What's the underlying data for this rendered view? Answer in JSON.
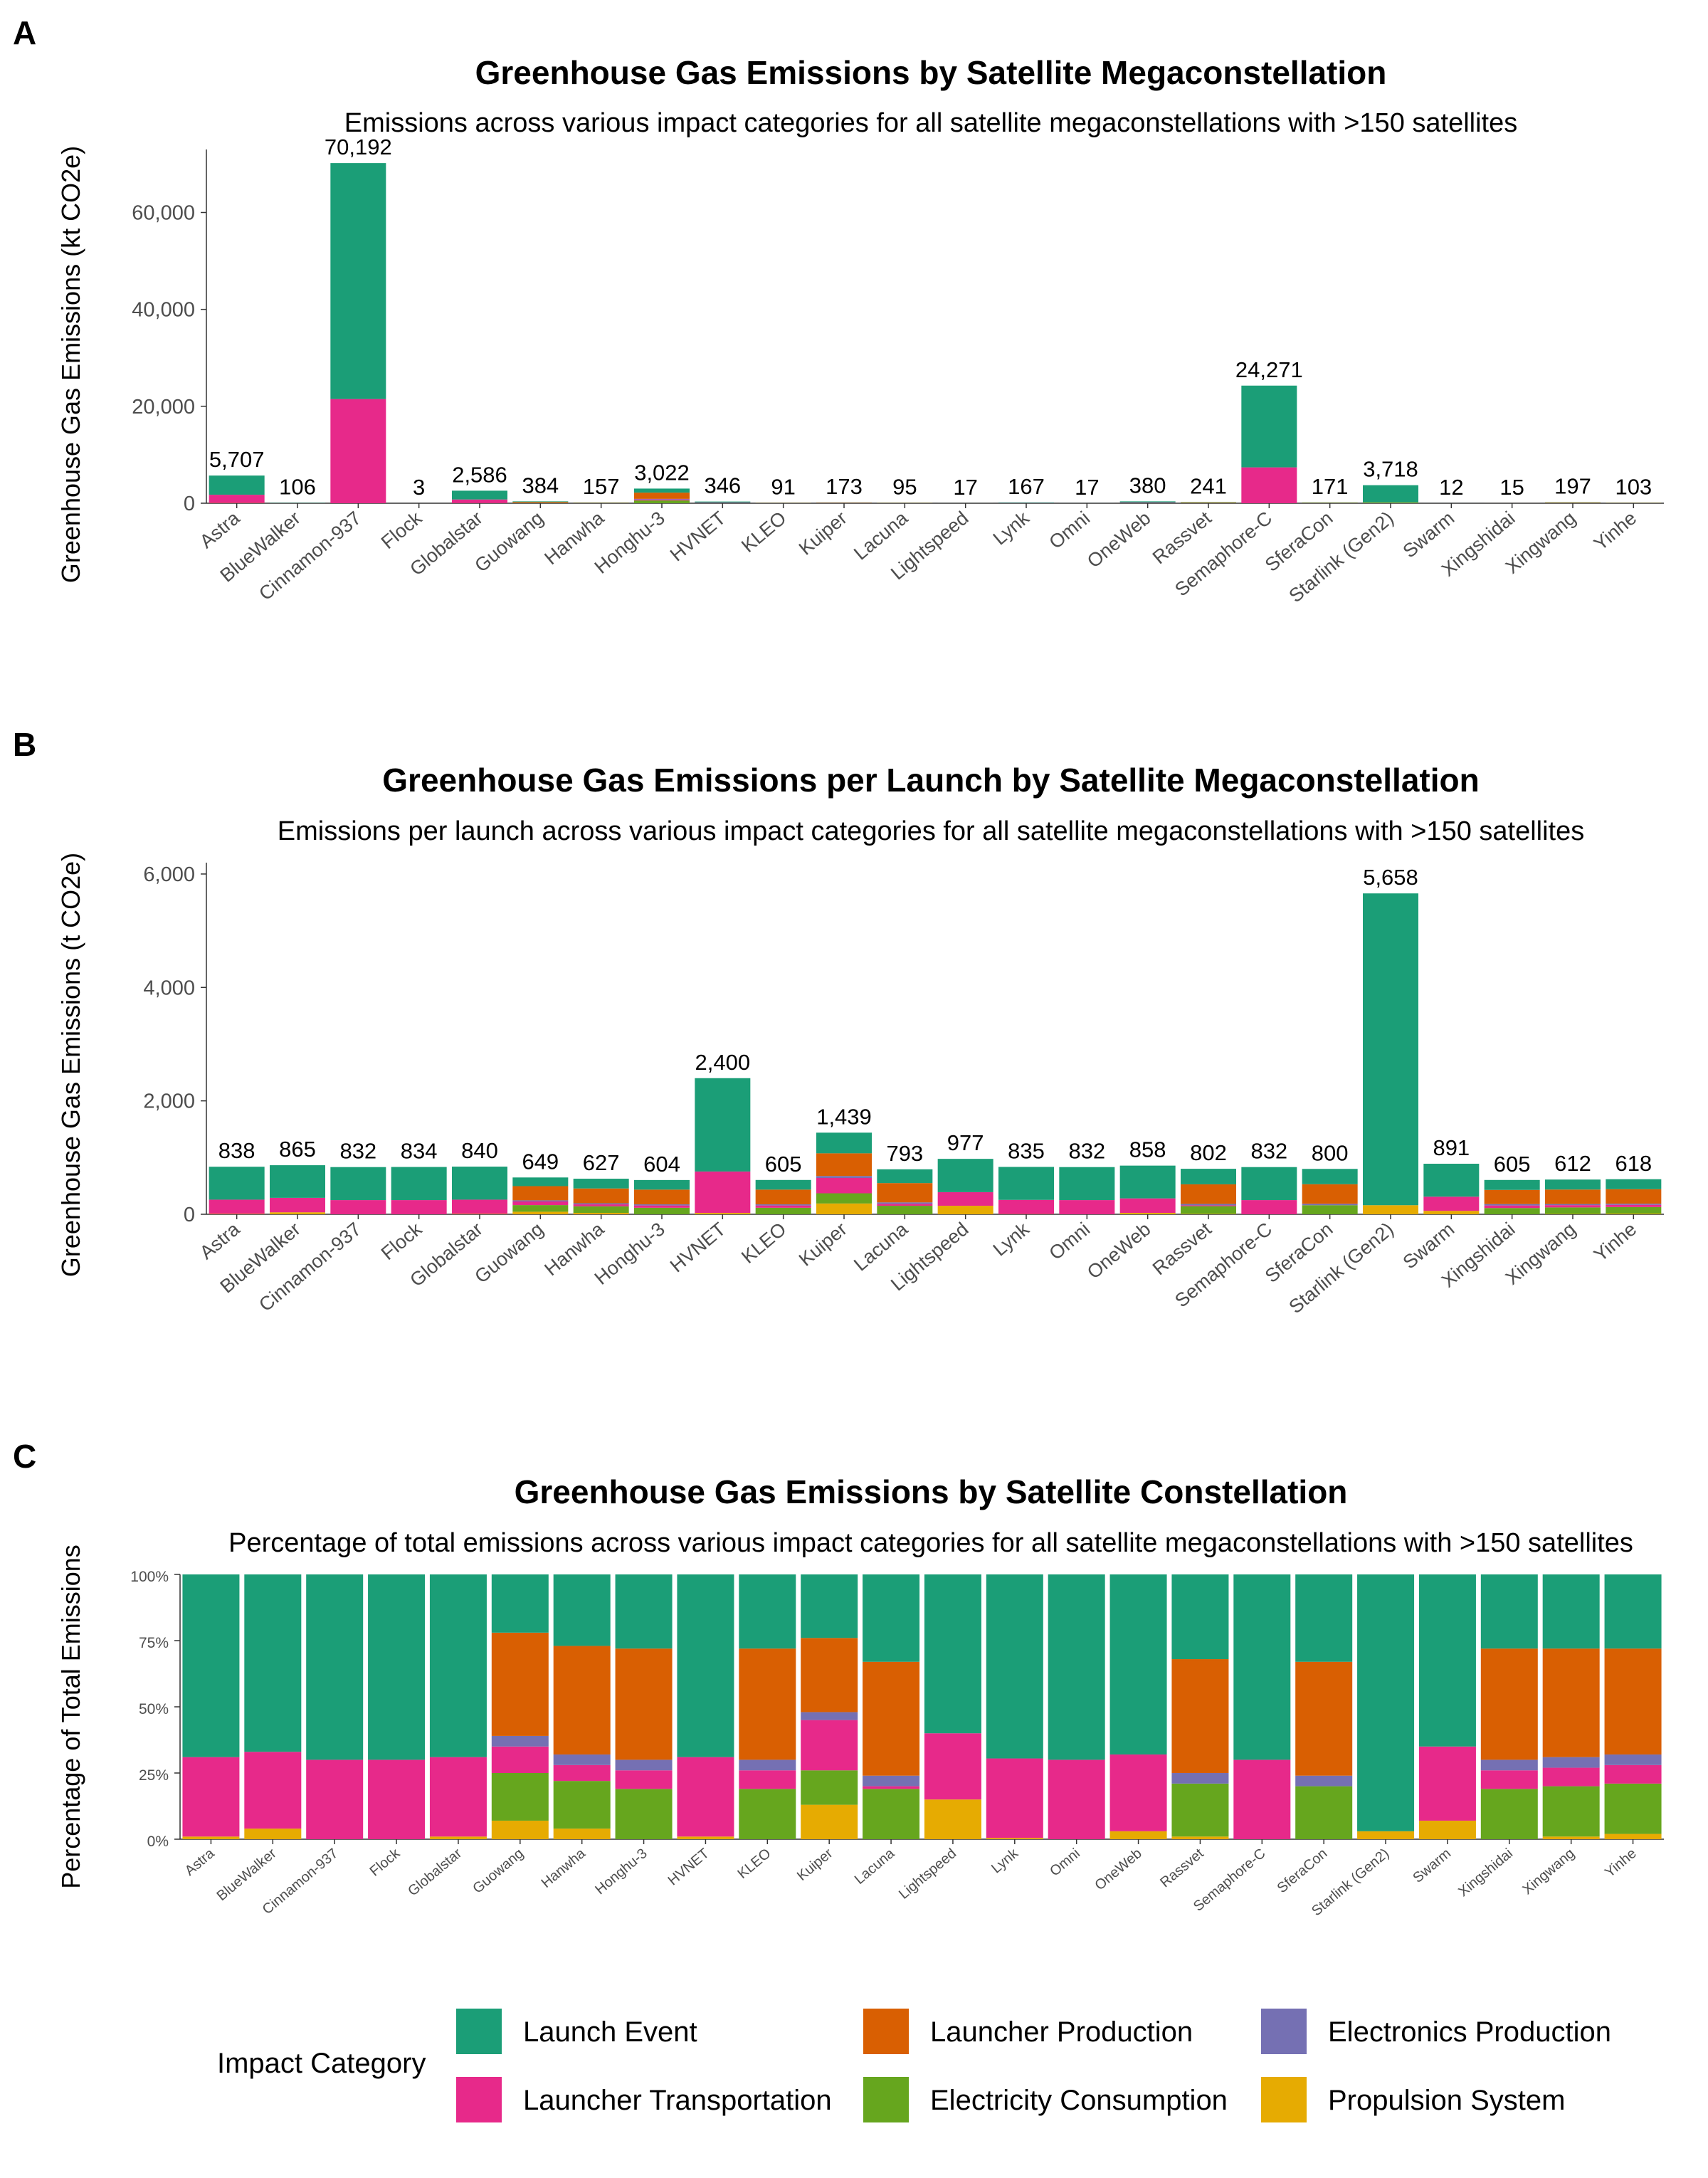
{
  "panels": [
    {
      "letter": "A",
      "title": "Greenhouse Gas Emissions by Satellite Megaconstellation",
      "subtitle": "Emissions across various impact categories for all satellite megaconstellations with >150 satellites"
    },
    {
      "letter": "B",
      "title": "Greenhouse Gas Emissions per Launch by Satellite Megaconstellation",
      "subtitle": "Emissions per launch across various impact categories for all satellite megaconstellations with >150 satellites"
    },
    {
      "letter": "C",
      "title": "Greenhouse Gas Emissions by Satellite Constellation",
      "subtitle": "Percentage of total emissions across various impact categories for all satellite megaconstellations with >150 satellites"
    }
  ],
  "legend": {
    "title": "Impact Category",
    "items": [
      {
        "name": "Launch Event",
        "color": "#1b9e77"
      },
      {
        "name": "Launcher Production",
        "color": "#d95f02"
      },
      {
        "name": "Electronics Production",
        "color": "#7570b3"
      },
      {
        "name": "Launcher Transportation",
        "color": "#e7298a"
      },
      {
        "name": "Electricity Consumption",
        "color": "#66a61e"
      },
      {
        "name": "Propulsion System",
        "color": "#e6ab02"
      }
    ]
  },
  "chart_data": [
    {
      "type": "bar",
      "stacked": true,
      "title": "Greenhouse Gas Emissions by Satellite Megaconstellation",
      "subtitle": "Emissions across various impact categories for all satellite megaconstellations with >150 satellites",
      "xlabel": "",
      "ylabel": "Greenhouse Gas Emissions (kt CO2e)",
      "ylim": [
        0,
        73000
      ],
      "yticks": [
        0,
        20000,
        40000,
        60000
      ],
      "ytick_labels": [
        "0",
        "20,000",
        "40,000",
        "60,000"
      ],
      "categories": [
        "Astra",
        "BlueWalker",
        "Cinnamon-937",
        "Flock",
        "Globalstar",
        "Guowang",
        "Hanwha",
        "Honghu-3",
        "HVNET",
        "KLEO",
        "Kuiper",
        "Lacuna",
        "Lightspeed",
        "Lynk",
        "Omni",
        "OneWeb",
        "Rassvet",
        "Semaphore-C",
        "SferaCon",
        "Starlink (Gen2)",
        "Swarm",
        "Xingshidai",
        "Xingwang",
        "Yinhe"
      ],
      "totals": [
        5707,
        106,
        70192,
        3,
        2586,
        384,
        157,
        3022,
        346,
        91,
        173,
        95,
        17,
        167,
        17,
        380,
        241,
        24271,
        171,
        3718,
        12,
        15,
        197,
        103
      ],
      "total_labels": [
        "5,707",
        "106",
        "70,192",
        "3",
        "2,586",
        "384",
        "157",
        "3,022",
        "346",
        "91",
        "173",
        "95",
        "17",
        "167",
        "17",
        "380",
        "241",
        "24,271",
        "171",
        "3,718",
        "12",
        "15",
        "197",
        "103"
      ],
      "series": [
        {
          "name": "Propulsion System",
          "values": [
            50,
            4,
            0,
            0,
            25,
            27,
            6,
            0,
            5,
            0,
            23,
            0,
            3,
            1,
            0,
            11,
            2,
            0,
            0,
            110,
            1,
            0,
            0,
            2
          ]
        },
        {
          "name": "Electricity Consumption",
          "values": [
            0,
            0,
            0,
            0,
            0,
            69,
            28,
            572,
            0,
            18,
            21,
            18,
            0,
            0,
            0,
            0,
            48,
            0,
            33,
            0,
            0,
            3,
            37,
            19
          ]
        },
        {
          "name": "Launcher Transportation",
          "values": [
            1700,
            31,
            21500,
            1,
            750,
            27,
            9,
            207,
            101,
            6,
            33,
            4,
            4,
            50,
            5,
            110,
            10,
            7400,
            0,
            0,
            3,
            1,
            14,
            6
          ]
        },
        {
          "name": "Electronics Production",
          "values": [
            0,
            0,
            0,
            0,
            0,
            12,
            7,
            121,
            0,
            3,
            3,
            4,
            0,
            0,
            0,
            0,
            9,
            0,
            7,
            0,
            0,
            1,
            6,
            3
          ]
        },
        {
          "name": "Launcher Production",
          "values": [
            0,
            0,
            0,
            0,
            0,
            150,
            64,
            1287,
            0,
            39,
            49,
            41,
            0,
            0,
            0,
            0,
            103,
            0,
            72,
            0,
            0,
            6,
            82,
            42
          ]
        },
        {
          "name": "Launch Event",
          "values": [
            3957,
            71,
            48692,
            2,
            1811,
            99,
            43,
            835,
            240,
            25,
            44,
            28,
            10,
            116,
            12,
            259,
            69,
            16871,
            59,
            3608,
            8,
            4,
            58,
            31
          ]
        }
      ]
    },
    {
      "type": "bar",
      "stacked": true,
      "title": "Greenhouse Gas Emissions per Launch by Satellite Megaconstellation",
      "subtitle": "Emissions per launch across various impact categories for all satellite megaconstellations with >150 satellites",
      "xlabel": "",
      "ylabel": "Greenhouse Gas Emissions (t CO2e)",
      "ylim": [
        0,
        6200
      ],
      "yticks": [
        0,
        2000,
        4000,
        6000
      ],
      "ytick_labels": [
        "0",
        "2,000",
        "4,000",
        "6,000"
      ],
      "categories": [
        "Astra",
        "BlueWalker",
        "Cinnamon-937",
        "Flock",
        "Globalstar",
        "Guowang",
        "Hanwha",
        "Honghu-3",
        "HVNET",
        "KLEO",
        "Kuiper",
        "Lacuna",
        "Lightspeed",
        "Lynk",
        "Omni",
        "OneWeb",
        "Rassvet",
        "Semaphore-C",
        "SferaCon",
        "Starlink (Gen2)",
        "Swarm",
        "Xingshidai",
        "Xingwang",
        "Yinhe"
      ],
      "totals": [
        838,
        865,
        832,
        834,
        840,
        649,
        627,
        604,
        2400,
        605,
        1439,
        793,
        977,
        835,
        832,
        858,
        802,
        832,
        800,
        5658,
        891,
        605,
        612,
        618
      ],
      "total_labels": [
        "838",
        "865",
        "832",
        "834",
        "840",
        "649",
        "627",
        "604",
        "2,400",
        "605",
        "1,439",
        "793",
        "977",
        "835",
        "832",
        "858",
        "802",
        "832",
        "800",
        "5,658",
        "891",
        "605",
        "612",
        "618"
      ],
      "series": [
        {
          "name": "Propulsion System",
          "values": [
            8,
            35,
            0,
            0,
            8,
            45,
            25,
            0,
            24,
            0,
            190,
            0,
            150,
            4,
            0,
            25,
            8,
            0,
            0,
            160,
            60,
            0,
            6,
            12
          ]
        },
        {
          "name": "Electricity Consumption",
          "values": [
            0,
            0,
            0,
            0,
            0,
            117,
            115,
            115,
            0,
            115,
            180,
            150,
            0,
            0,
            0,
            0,
            135,
            0,
            160,
            0,
            0,
            110,
            115,
            115
          ]
        },
        {
          "name": "Launcher Transportation",
          "values": [
            250,
            255,
            250,
            250,
            250,
            64,
            35,
            40,
            730,
            40,
            270,
            35,
            240,
            250,
            250,
            255,
            15,
            250,
            0,
            0,
            250,
            45,
            40,
            40
          ]
        },
        {
          "name": "Electronics Production",
          "values": [
            0,
            0,
            0,
            0,
            0,
            20,
            20,
            20,
            0,
            20,
            35,
            25,
            0,
            0,
            0,
            0,
            25,
            0,
            25,
            0,
            0,
            25,
            20,
            20
          ]
        },
        {
          "name": "Launcher Production",
          "values": [
            0,
            0,
            0,
            0,
            0,
            250,
            260,
            260,
            0,
            260,
            400,
            340,
            0,
            0,
            0,
            0,
            345,
            0,
            345,
            0,
            0,
            250,
            255,
            255
          ]
        },
        {
          "name": "Launch Event",
          "values": [
            580,
            575,
            582,
            584,
            582,
            153,
            172,
            169,
            1646,
            170,
            364,
            243,
            587,
            581,
            582,
            578,
            274,
            582,
            270,
            5498,
            581,
            175,
            176,
            176
          ]
        }
      ]
    },
    {
      "type": "bar",
      "stacked": true,
      "percent": true,
      "title": "Greenhouse Gas Emissions by Satellite Constellation",
      "subtitle": "Percentage of total emissions across various impact categories for all satellite megaconstellations with >150 satellites",
      "xlabel": "",
      "ylabel": "Percentage of Total Emissions",
      "ylim": [
        0,
        100
      ],
      "yticks": [
        0,
        25,
        50,
        75,
        100
      ],
      "ytick_labels": [
        "0%",
        "25%",
        "50%",
        "75%",
        "100%"
      ],
      "categories": [
        "Astra",
        "BlueWalker",
        "Cinnamon-937",
        "Flock",
        "Globalstar",
        "Guowang",
        "Hanwha",
        "Honghu-3",
        "HVNET",
        "KLEO",
        "Kuiper",
        "Lacuna",
        "Lightspeed",
        "Lynk",
        "Omni",
        "OneWeb",
        "Rassvet",
        "Semaphore-C",
        "SferaCon",
        "Starlink (Gen2)",
        "Swarm",
        "Xingshidai",
        "Xingwang",
        "Yinhe"
      ],
      "series": [
        {
          "name": "Propulsion System",
          "values": [
            1,
            4,
            0,
            0,
            1,
            7,
            4,
            0,
            1,
            0,
            13,
            0,
            15,
            0.5,
            0,
            3,
            1,
            0,
            0,
            3,
            7,
            0,
            1,
            2
          ]
        },
        {
          "name": "Electricity Consumption",
          "values": [
            0,
            0,
            0,
            0,
            0,
            18,
            18,
            19,
            0,
            19,
            13,
            19,
            0,
            0,
            0,
            0,
            20,
            0,
            20,
            0,
            0,
            19,
            19,
            19
          ]
        },
        {
          "name": "Launcher Transportation",
          "values": [
            30,
            29,
            30,
            30,
            30,
            10,
            6,
            7,
            30,
            7,
            19,
            1,
            25,
            30,
            30,
            29,
            0,
            30,
            0,
            0,
            28,
            7,
            7,
            7
          ]
        },
        {
          "name": "Electronics Production",
          "values": [
            0,
            0,
            0,
            0,
            0,
            4,
            4,
            4,
            0,
            4,
            3,
            4,
            0,
            0,
            0,
            0,
            4,
            0,
            4,
            0,
            0,
            4,
            4,
            4
          ]
        },
        {
          "name": "Launcher Production",
          "values": [
            0,
            0,
            0,
            0,
            0,
            39,
            41,
            42,
            0,
            42,
            28,
            43,
            0,
            0,
            0,
            0,
            43,
            0,
            43,
            0,
            0,
            42,
            41,
            40
          ]
        },
        {
          "name": "Launch Event",
          "values": [
            69,
            67,
            70,
            70,
            69,
            22,
            27,
            28,
            69,
            28,
            24,
            33,
            60,
            69.5,
            70,
            68,
            32,
            70,
            33,
            97,
            65,
            28,
            28,
            28
          ]
        }
      ]
    }
  ]
}
